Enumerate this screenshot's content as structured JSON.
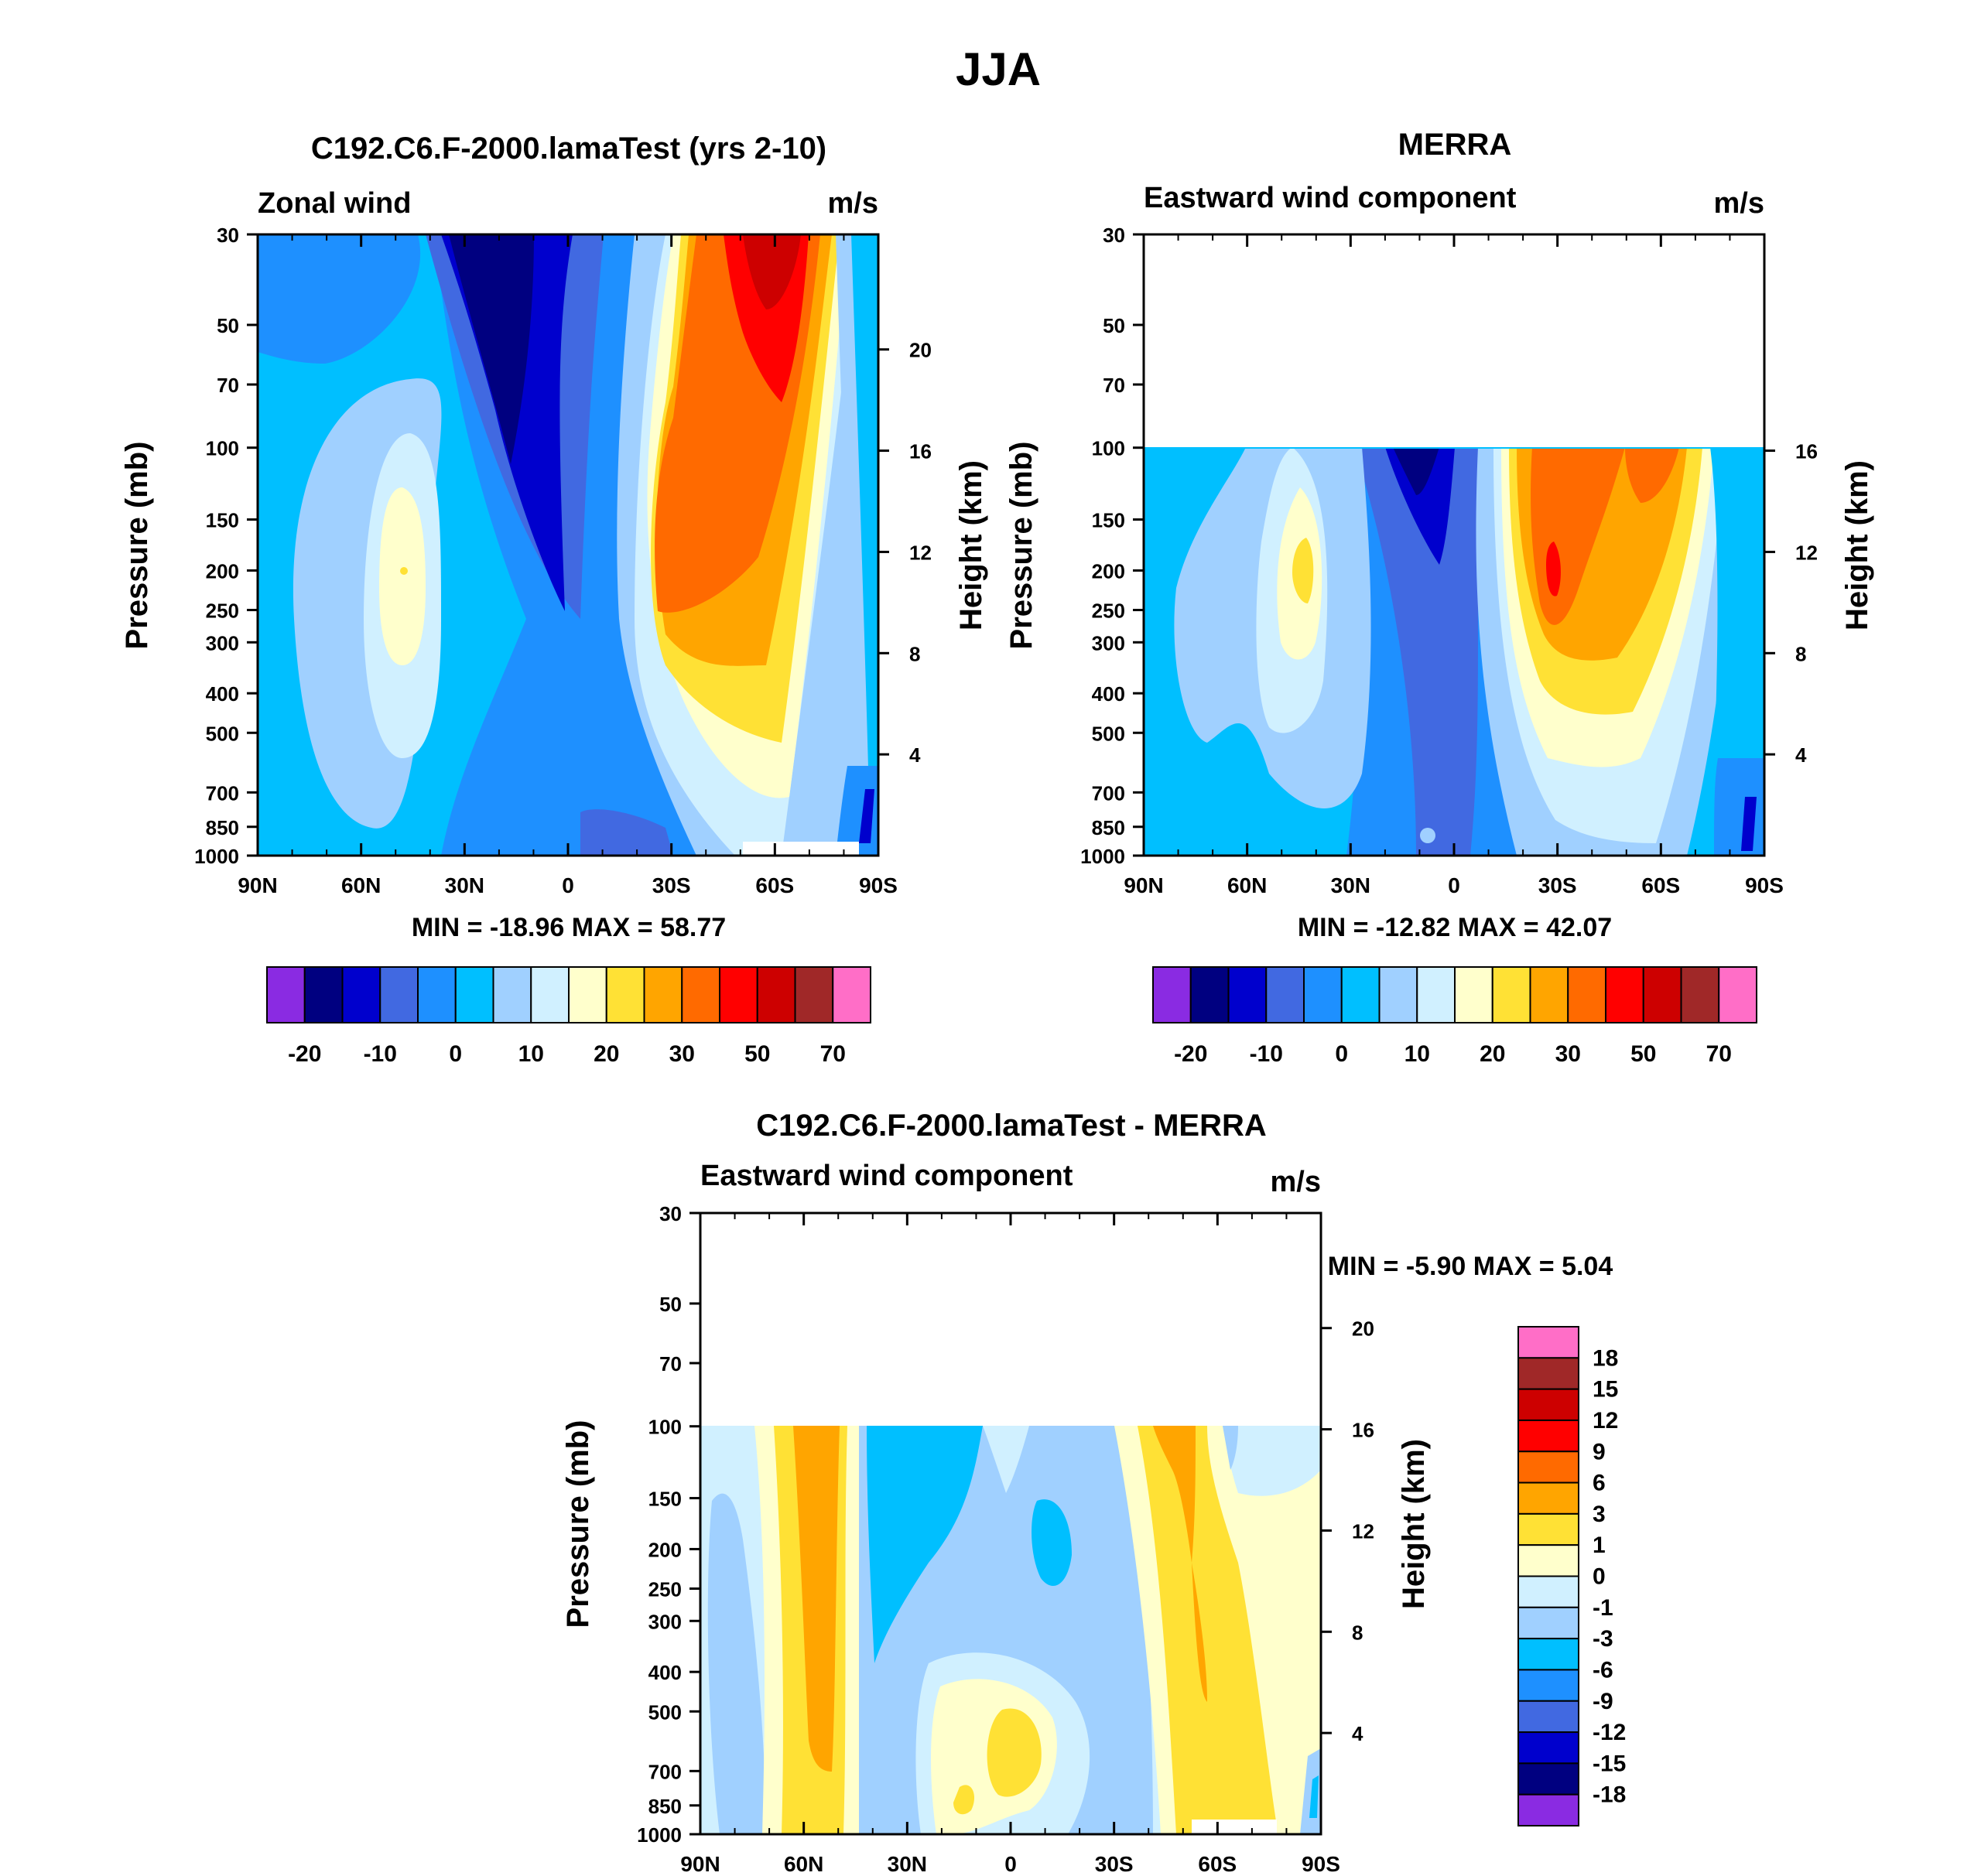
{
  "page_title": "JJA",
  "colors": {
    "cb1": [
      "#8a2be2",
      "#000080",
      "#0000cd",
      "#4169e1",
      "#1e90ff",
      "#00bfff",
      "#a0d0ff",
      "#d0f0ff",
      "#ffffcc",
      "#ffe135",
      "#ffa500",
      "#ff6a00",
      "#ff0000",
      "#cd0000",
      "#a02828",
      "#ff6ec7"
    ],
    "cb2": [
      "#8a2be2",
      "#000080",
      "#0000cd",
      "#4169e1",
      "#1e90ff",
      "#00bfff",
      "#a0d0ff",
      "#d0f0ff",
      "#ffffcc",
      "#ffe135",
      "#ffa500",
      "#ff6a00",
      "#ff0000",
      "#cd0000",
      "#a02828",
      "#ff6ec7"
    ]
  },
  "chart_data": [
    {
      "type": "heatmap",
      "title": "C192.C6.F-2000.lamaTest (yrs 2-10)",
      "left_label": "Zonal wind",
      "units": "m/s",
      "ylabel": "Pressure (mb)",
      "y2label": "Height (km)",
      "x_ticks": [
        "90N",
        "60N",
        "30N",
        "0",
        "30S",
        "60S",
        "90S"
      ],
      "y_ticks": [
        "30",
        "50",
        "70",
        "100",
        "150",
        "200",
        "250",
        "300",
        "400",
        "500",
        "700",
        "850",
        "1000"
      ],
      "y2_ticks": [
        "20",
        "16",
        "12",
        "8",
        "4"
      ],
      "stats": "MIN = -18.96  MAX =  58.77",
      "colorbar_labels": [
        "-20",
        "-10",
        "0",
        "10",
        "20",
        "30",
        "50",
        "70"
      ]
    },
    {
      "type": "heatmap",
      "title": "MERRA",
      "left_label": "Eastward wind component",
      "units": "m/s",
      "ylabel": "Pressure (mb)",
      "y2label": "Height (km)",
      "x_ticks": [
        "90N",
        "60N",
        "30N",
        "0",
        "30S",
        "60S",
        "90S"
      ],
      "y_ticks": [
        "30",
        "50",
        "70",
        "100",
        "150",
        "200",
        "250",
        "300",
        "400",
        "500",
        "700",
        "850",
        "1000"
      ],
      "y2_ticks": [
        "16",
        "12",
        "8",
        "4"
      ],
      "stats": "MIN = -12.82  MAX =  42.07",
      "colorbar_labels": [
        "-20",
        "-10",
        "0",
        "10",
        "20",
        "30",
        "50",
        "70"
      ]
    },
    {
      "type": "heatmap",
      "title": "C192.C6.F-2000.lamaTest - MERRA",
      "left_label": "Eastward wind component",
      "units": "m/s",
      "ylabel": "Pressure (mb)",
      "y2label": "Height (km)",
      "x_ticks": [
        "90N",
        "60N",
        "30N",
        "0",
        "30S",
        "60S",
        "90S"
      ],
      "y_ticks": [
        "30",
        "50",
        "70",
        "100",
        "150",
        "200",
        "250",
        "300",
        "400",
        "500",
        "700",
        "850",
        "1000"
      ],
      "y2_ticks": [
        "20",
        "16",
        "12",
        "8",
        "4"
      ],
      "stats": "MIN =  -5.90  MAX =   5.04",
      "colorbar_labels": [
        "18",
        "15",
        "12",
        "9",
        "6",
        "3",
        "1",
        "0",
        "-1",
        "-3",
        "-6",
        "-9",
        "-12",
        "-15",
        "-18"
      ],
      "colorbar_colors": [
        "#ff6ec7",
        "#a02828",
        "#cd0000",
        "#ff0000",
        "#ff6a00",
        "#ffa500",
        "#ffe135",
        "#ffffcc",
        "#d0f0ff",
        "#a0d0ff",
        "#00bfff",
        "#1e90ff",
        "#4169e1",
        "#0000cd",
        "#000080",
        "#8a2be2"
      ]
    }
  ]
}
